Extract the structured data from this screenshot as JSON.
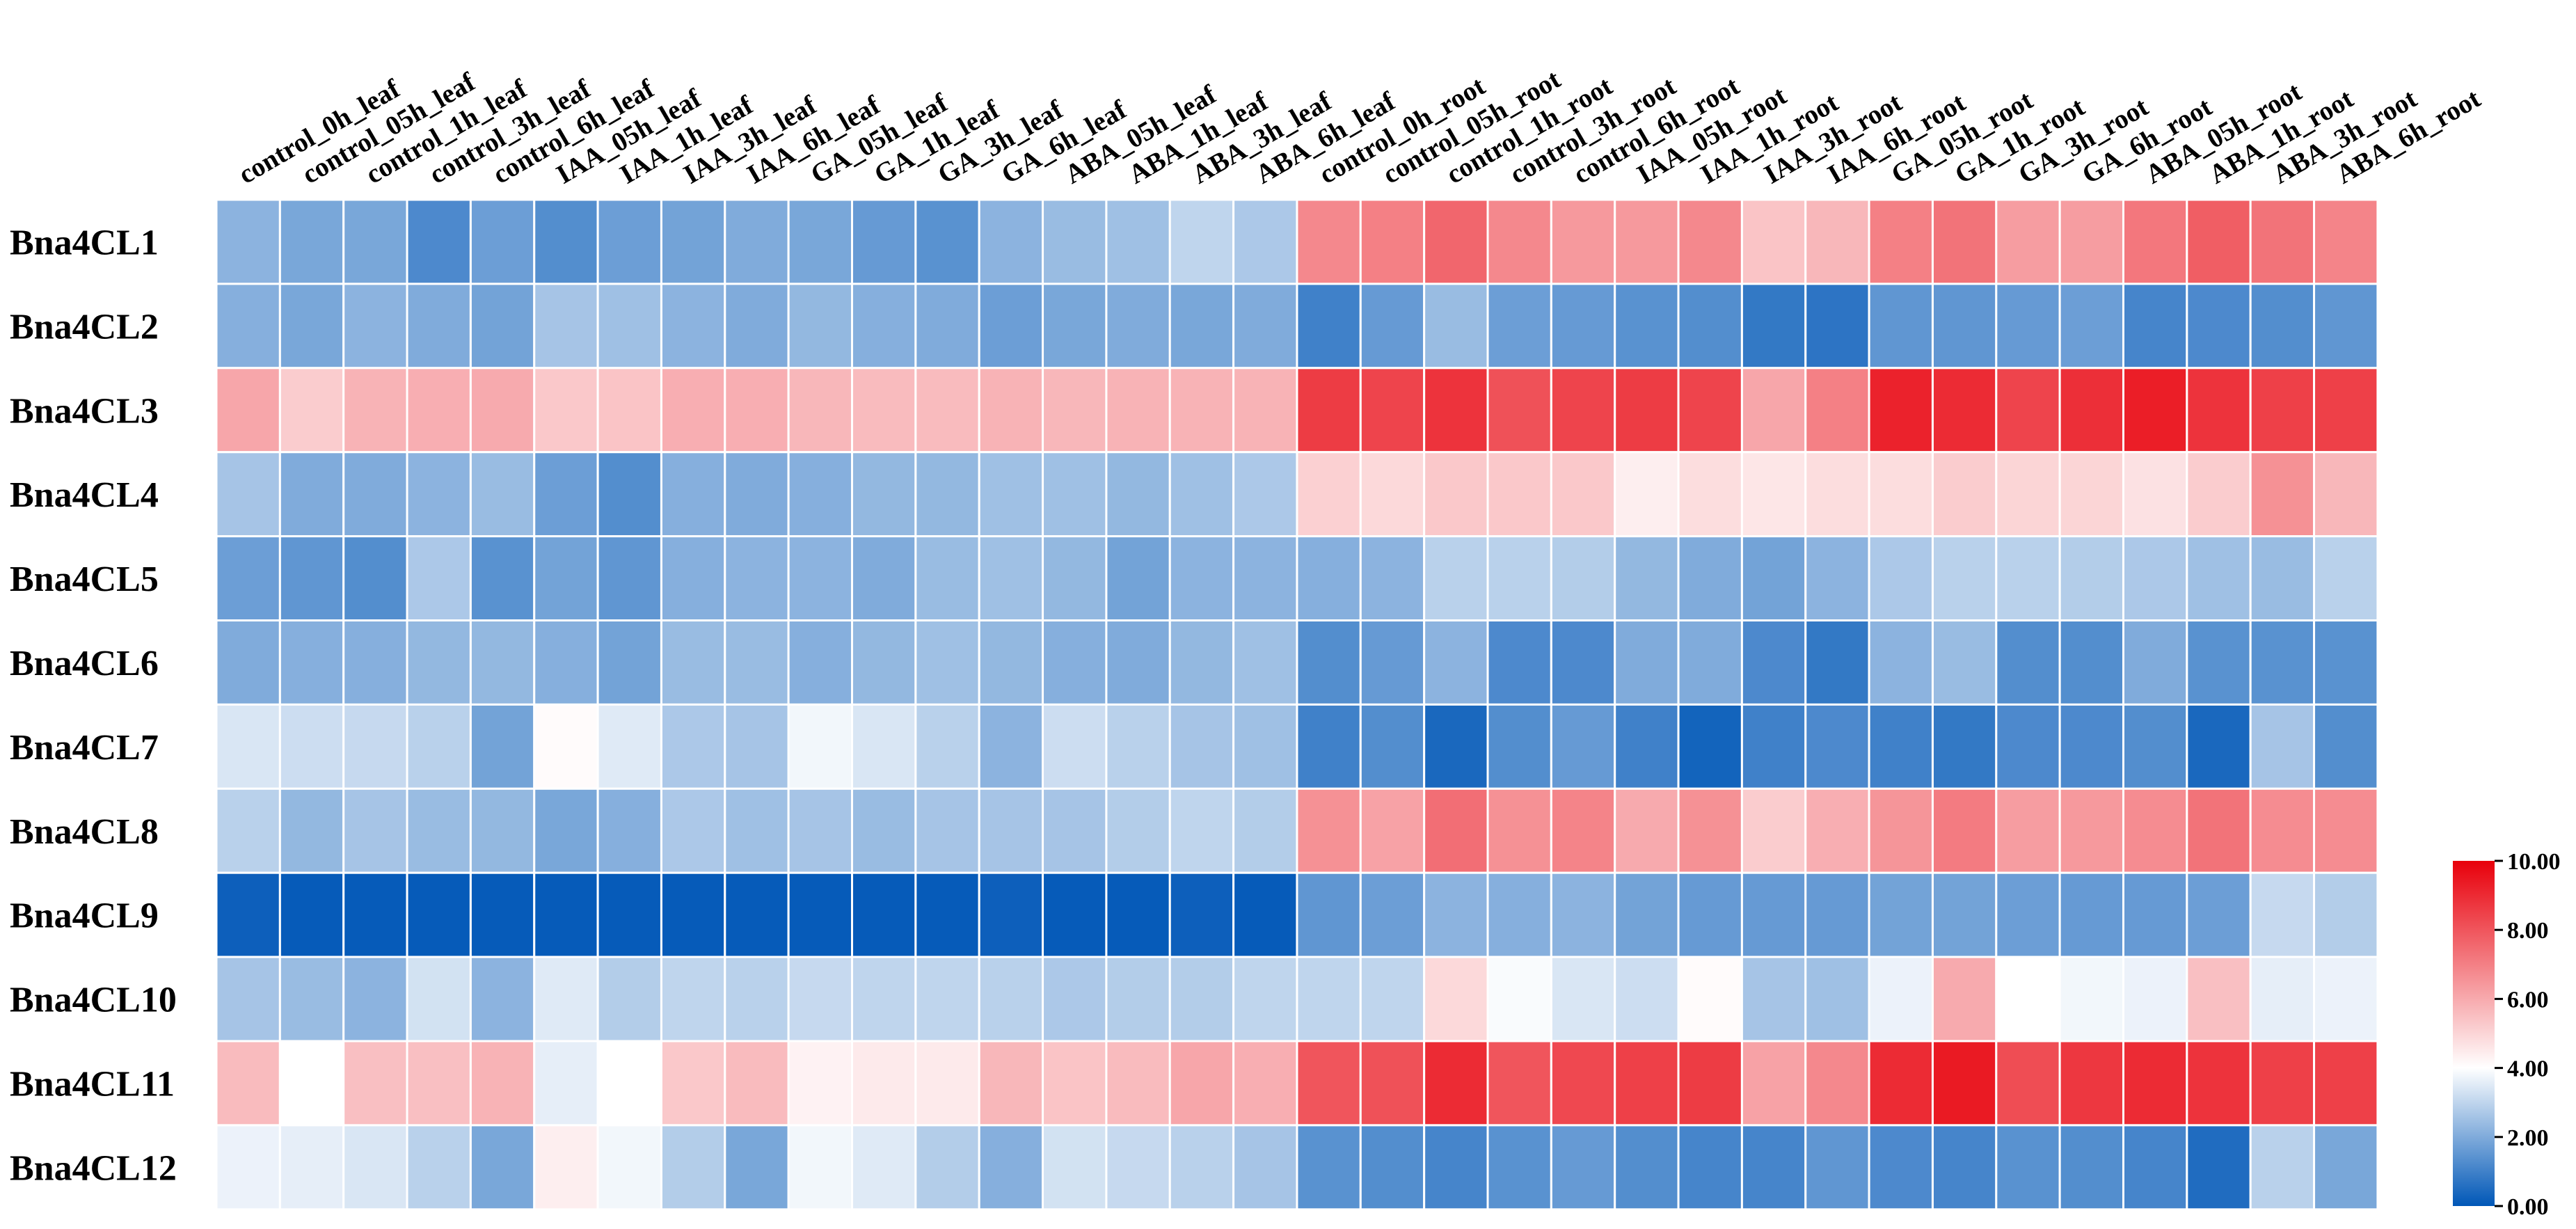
{
  "chart_data": {
    "type": "heatmap",
    "title": "",
    "columns": [
      "control_0h_leaf",
      "control_05h_leaf",
      "control_1h_leaf",
      "control_3h_leaf",
      "control_6h_leaf",
      "IAA_05h_leaf",
      "IAA_1h_leaf",
      "IAA_3h_leaf",
      "IAA_6h_leaf",
      "GA_05h_leaf",
      "GA_1h_leaf",
      "GA_3h_leaf",
      "GA_6h_leaf",
      "ABA_05h_leaf",
      "ABA_1h_leaf",
      "ABA_3h_leaf",
      "ABA_6h_leaf",
      "control_0h_root",
      "control_05h_root",
      "control_1h_root",
      "control_3h_root",
      "control_6h_root",
      "IAA_05h_root",
      "IAA_1h_root",
      "IAA_3h_root",
      "IAA_6h_root",
      "GA_05h_root",
      "GA_1h_root",
      "GA_3h_root",
      "GA_6h_root",
      "ABA_05h_root",
      "ABA_1h_root",
      "ABA_3h_root",
      "ABA_6h_root"
    ],
    "rows": [
      "Bna4CL1",
      "Bna4CL2",
      "Bna4CL3",
      "Bna4CL4",
      "Bna4CL5",
      "Bna4CL6",
      "Bna4CL7",
      "Bna4CL8",
      "Bna4CL9",
      "Bna4CL10",
      "Bna4CL11",
      "Bna4CL12"
    ],
    "values": [
      [
        2.2,
        1.9,
        1.9,
        1.2,
        1.7,
        1.3,
        1.7,
        1.8,
        2.0,
        1.9,
        1.6,
        1.4,
        2.2,
        2.4,
        2.5,
        3.0,
        2.7,
        6.8,
        7.0,
        7.6,
        6.8,
        6.4,
        6.4,
        6.8,
        5.4,
        5.7,
        7.0,
        7.3,
        6.3,
        6.3,
        7.2,
        7.8,
        7.3,
        6.9
      ],
      [
        2.1,
        1.9,
        2.2,
        2.0,
        1.8,
        2.6,
        2.5,
        2.2,
        2.0,
        2.3,
        2.1,
        2.0,
        1.7,
        1.9,
        2.0,
        1.9,
        2.0,
        1.0,
        1.6,
        2.4,
        1.7,
        1.6,
        1.4,
        1.3,
        0.8,
        0.7,
        1.5,
        1.5,
        1.6,
        1.7,
        1.1,
        1.2,
        1.3,
        1.5
      ],
      [
        6.1,
        5.2,
        5.8,
        5.9,
        6.0,
        5.3,
        5.4,
        5.9,
        5.9,
        5.7,
        5.6,
        5.6,
        5.8,
        5.7,
        5.8,
        5.8,
        5.8,
        8.6,
        8.4,
        8.8,
        8.1,
        8.4,
        8.6,
        8.4,
        6.1,
        7.0,
        9.2,
        9.0,
        8.4,
        8.9,
        9.3,
        8.8,
        8.5,
        8.5
      ],
      [
        2.6,
        2.0,
        2.0,
        2.2,
        2.4,
        1.7,
        1.3,
        2.1,
        2.0,
        2.1,
        2.3,
        2.3,
        2.5,
        2.5,
        2.3,
        2.5,
        2.7,
        5.1,
        4.9,
        5.3,
        5.3,
        5.3,
        4.4,
        4.8,
        4.6,
        4.8,
        4.8,
        5.2,
        5.0,
        5.0,
        4.7,
        5.2,
        6.6,
        5.7
      ],
      [
        1.7,
        1.5,
        1.3,
        2.7,
        1.4,
        1.8,
        1.5,
        2.1,
        2.2,
        2.2,
        2.0,
        2.4,
        2.5,
        2.3,
        1.8,
        2.2,
        2.2,
        2.1,
        2.2,
        2.9,
        2.9,
        2.8,
        2.3,
        2.0,
        1.8,
        2.2,
        2.7,
        2.9,
        2.9,
        2.8,
        2.7,
        2.5,
        2.4,
        2.9
      ],
      [
        2.0,
        2.1,
        2.1,
        2.3,
        2.3,
        2.1,
        1.8,
        2.4,
        2.4,
        2.1,
        2.3,
        2.5,
        2.3,
        2.1,
        2.0,
        2.3,
        2.5,
        1.3,
        1.6,
        2.2,
        1.2,
        1.2,
        2.0,
        2.0,
        1.2,
        0.8,
        2.2,
        2.4,
        1.3,
        1.3,
        2.0,
        1.4,
        1.4,
        1.4
      ],
      [
        3.4,
        3.2,
        3.1,
        2.9,
        1.8,
        4.1,
        3.5,
        2.7,
        2.6,
        3.8,
        3.4,
        2.9,
        2.2,
        3.2,
        2.9,
        2.6,
        2.5,
        1.0,
        1.3,
        0.4,
        1.3,
        1.6,
        1.0,
        0.3,
        1.0,
        1.2,
        1.0,
        0.8,
        1.2,
        1.2,
        1.3,
        0.4,
        2.6,
        1.3
      ],
      [
        2.9,
        2.3,
        2.6,
        2.4,
        2.3,
        1.9,
        2.1,
        2.7,
        2.5,
        2.6,
        2.4,
        2.6,
        2.6,
        2.6,
        2.8,
        3.0,
        2.8,
        6.6,
        6.2,
        7.4,
        6.6,
        6.9,
        6.0,
        6.6,
        5.2,
        5.9,
        6.5,
        7.1,
        6.3,
        6.4,
        6.7,
        7.3,
        6.7,
        6.7
      ],
      [
        0.2,
        0.1,
        0.1,
        0.1,
        0.1,
        0.1,
        0.1,
        0.1,
        0.1,
        0.1,
        0.1,
        0.1,
        0.2,
        0.1,
        0.1,
        0.2,
        0.1,
        1.5,
        1.7,
        2.2,
        2.1,
        2.2,
        1.8,
        1.6,
        1.6,
        1.6,
        1.8,
        1.8,
        1.7,
        1.6,
        1.6,
        1.7,
        3.1,
        2.8
      ],
      [
        2.6,
        2.4,
        2.2,
        3.3,
        2.2,
        3.5,
        2.8,
        3.0,
        2.9,
        3.1,
        3.0,
        3.0,
        2.9,
        2.7,
        2.8,
        2.8,
        3.0,
        3.0,
        3.0,
        4.9,
        3.9,
        3.4,
        3.2,
        4.1,
        2.6,
        2.5,
        3.7,
        6.0,
        4.0,
        3.8,
        3.7,
        5.5,
        3.6,
        3.7
      ],
      [
        5.6,
        4.0,
        5.5,
        5.5,
        5.8,
        3.6,
        4.0,
        5.3,
        5.6,
        4.3,
        4.5,
        4.5,
        5.7,
        5.4,
        5.6,
        6.1,
        5.9,
        8.0,
        8.1,
        9.0,
        8.0,
        8.3,
        8.5,
        8.6,
        6.2,
        6.8,
        9.0,
        9.4,
        8.2,
        8.7,
        9.0,
        8.8,
        8.5,
        8.5
      ],
      [
        3.7,
        3.6,
        3.4,
        2.9,
        1.9,
        4.4,
        3.8,
        2.8,
        1.9,
        3.8,
        3.5,
        2.8,
        2.1,
        3.3,
        3.1,
        2.9,
        2.6,
        1.4,
        1.3,
        1.1,
        1.4,
        1.6,
        1.3,
        1.1,
        1.1,
        1.5,
        1.2,
        1.1,
        1.4,
        1.3,
        1.1,
        0.5,
        2.9,
        1.9
      ]
    ],
    "colormap": {
      "min": 0,
      "mid": 4,
      "max": 10,
      "min_color": "#0057B7",
      "mid_color": "#FFFFFF",
      "max_color": "#E8000B"
    },
    "colorbar": {
      "ticks": [
        "0.00",
        "2.00",
        "4.00",
        "6.00",
        "8.00",
        "10.00"
      ],
      "tick_values": [
        0,
        2,
        4,
        6,
        8,
        10
      ],
      "position": "bottom-right"
    },
    "grid_color": "#FFFFFF"
  }
}
